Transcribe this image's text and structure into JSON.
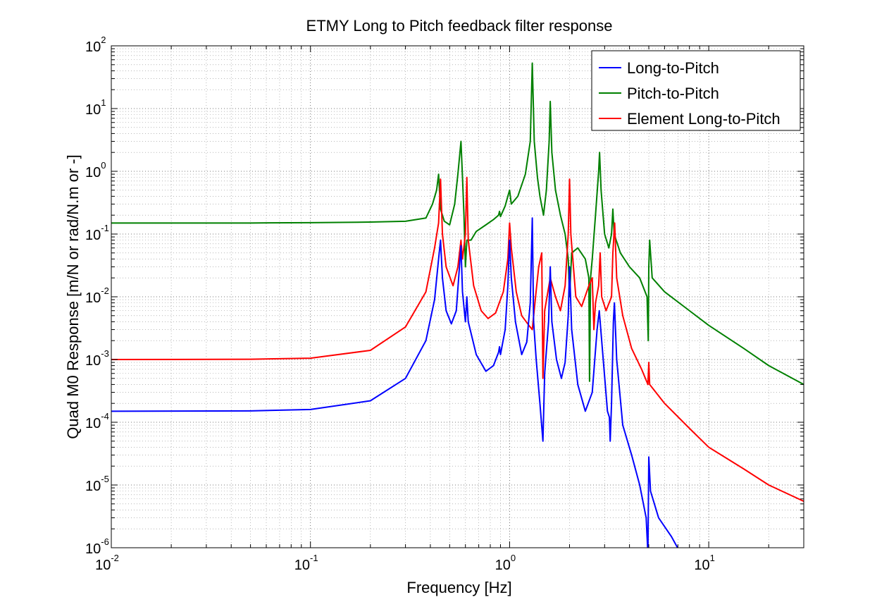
{
  "chart_data": {
    "type": "line",
    "title": "ETMY Long to Pitch feedback filter response",
    "xlabel": "Frequency [Hz]",
    "ylabel": "Quad M0 Response [m/N or rad/N.m or -]",
    "xscale": "log",
    "yscale": "log",
    "xlim": [
      0.01,
      30
    ],
    "ylim": [
      1e-06,
      100
    ],
    "grid": "major-and-minor dotted",
    "legend_position": "top-right",
    "x_ticks": [
      {
        "value": 0.01,
        "base": "10",
        "exp": "-2"
      },
      {
        "value": 0.1,
        "base": "10",
        "exp": "-1"
      },
      {
        "value": 1,
        "base": "10",
        "exp": "0"
      },
      {
        "value": 10,
        "base": "10",
        "exp": "1"
      }
    ],
    "y_ticks": [
      {
        "value": 1e-06,
        "base": "10",
        "exp": "-6"
      },
      {
        "value": 1e-05,
        "base": "10",
        "exp": "-5"
      },
      {
        "value": 0.0001,
        "base": "10",
        "exp": "-4"
      },
      {
        "value": 0.001,
        "base": "10",
        "exp": "-3"
      },
      {
        "value": 0.01,
        "base": "10",
        "exp": "-2"
      },
      {
        "value": 0.1,
        "base": "10",
        "exp": "-1"
      },
      {
        "value": 1,
        "base": "10",
        "exp": "0"
      },
      {
        "value": 10,
        "base": "10",
        "exp": "1"
      },
      {
        "value": 100,
        "base": "10",
        "exp": "2"
      }
    ],
    "series": [
      {
        "name": "Long-to-Pitch",
        "color": "#0000ff",
        "points": [
          [
            0.01,
            0.00015
          ],
          [
            0.05,
            0.000152
          ],
          [
            0.1,
            0.00016
          ],
          [
            0.2,
            0.00022
          ],
          [
            0.3,
            0.0005
          ],
          [
            0.38,
            0.002
          ],
          [
            0.42,
            0.009
          ],
          [
            0.44,
            0.04
          ],
          [
            0.45,
            0.08
          ],
          [
            0.46,
            0.02
          ],
          [
            0.48,
            0.006
          ],
          [
            0.51,
            0.0037
          ],
          [
            0.54,
            0.006
          ],
          [
            0.56,
            0.03
          ],
          [
            0.57,
            0.065
          ],
          [
            0.58,
            0.012
          ],
          [
            0.6,
            0.004
          ],
          [
            0.61,
            0.01
          ],
          [
            0.62,
            0.004
          ],
          [
            0.68,
            0.0012
          ],
          [
            0.76,
            0.00065
          ],
          [
            0.83,
            0.0008
          ],
          [
            0.88,
            0.0013
          ],
          [
            0.89,
            0.0016
          ],
          [
            0.9,
            0.0012
          ],
          [
            0.95,
            0.003
          ],
          [
            0.98,
            0.015
          ],
          [
            1.0,
            0.08
          ],
          [
            1.02,
            0.02
          ],
          [
            1.07,
            0.004
          ],
          [
            1.15,
            0.0012
          ],
          [
            1.22,
            0.0019
          ],
          [
            1.27,
            0.008
          ],
          [
            1.3,
            0.18
          ],
          [
            1.32,
            0.004
          ],
          [
            1.36,
            0.001
          ],
          [
            1.42,
            0.0002
          ],
          [
            1.47,
            5e-05
          ],
          [
            1.5,
            0.0006
          ],
          [
            1.57,
            0.004
          ],
          [
            1.6,
            0.03
          ],
          [
            1.63,
            0.004
          ],
          [
            1.72,
            0.001
          ],
          [
            1.82,
            0.0005
          ],
          [
            1.9,
            0.0009
          ],
          [
            1.97,
            0.005
          ],
          [
            2.0,
            0.03
          ],
          [
            2.05,
            0.003
          ],
          [
            2.2,
            0.0004
          ],
          [
            2.4,
            0.00015
          ],
          [
            2.6,
            0.0003
          ],
          [
            2.75,
            0.003
          ],
          [
            2.82,
            0.006
          ],
          [
            2.9,
            0.002
          ],
          [
            3.1,
            0.00015
          ],
          [
            3.17,
            0.00012
          ],
          [
            3.2,
            5e-05
          ],
          [
            3.25,
            0.0002
          ],
          [
            3.32,
            0.004
          ],
          [
            3.36,
            0.008
          ],
          [
            3.45,
            0.001
          ],
          [
            3.7,
            9e-05
          ],
          [
            4.1,
            3e-05
          ],
          [
            4.5,
            1e-05
          ],
          [
            4.85,
            3e-06
          ],
          [
            4.95,
            8e-07
          ],
          [
            5.0,
            2.8e-05
          ],
          [
            5.1,
            8e-06
          ],
          [
            5.6,
            3e-06
          ],
          [
            6.5,
            1.5e-06
          ],
          [
            7.1,
            9e-07
          ],
          [
            8.0,
            8e-07
          ]
        ]
      },
      {
        "name": "Pitch-to-Pitch",
        "color": "#008000",
        "points": [
          [
            0.01,
            0.15
          ],
          [
            0.05,
            0.15
          ],
          [
            0.1,
            0.152
          ],
          [
            0.2,
            0.155
          ],
          [
            0.3,
            0.16
          ],
          [
            0.38,
            0.18
          ],
          [
            0.41,
            0.3
          ],
          [
            0.43,
            0.5
          ],
          [
            0.44,
            0.9
          ],
          [
            0.45,
            0.25
          ],
          [
            0.47,
            0.16
          ],
          [
            0.5,
            0.14
          ],
          [
            0.53,
            0.3
          ],
          [
            0.55,
            0.9
          ],
          [
            0.57,
            3.0
          ],
          [
            0.58,
            0.8
          ],
          [
            0.59,
            0.2
          ],
          [
            0.6,
            0.03
          ],
          [
            0.61,
            0.08
          ],
          [
            0.64,
            0.08
          ],
          [
            0.68,
            0.11
          ],
          [
            0.76,
            0.14
          ],
          [
            0.83,
            0.17
          ],
          [
            0.88,
            0.2
          ],
          [
            0.89,
            0.23
          ],
          [
            0.9,
            0.19
          ],
          [
            0.95,
            0.28
          ],
          [
            0.98,
            0.4
          ],
          [
            1.0,
            0.5
          ],
          [
            1.02,
            0.3
          ],
          [
            1.1,
            0.4
          ],
          [
            1.2,
            0.9
          ],
          [
            1.27,
            3.0
          ],
          [
            1.3,
            53
          ],
          [
            1.33,
            3.0
          ],
          [
            1.38,
            0.8
          ],
          [
            1.42,
            0.4
          ],
          [
            1.48,
            0.2
          ],
          [
            1.53,
            0.5
          ],
          [
            1.58,
            3.0
          ],
          [
            1.6,
            13
          ],
          [
            1.63,
            2.0
          ],
          [
            1.7,
            0.5
          ],
          [
            1.8,
            0.2
          ],
          [
            1.9,
            0.1
          ],
          [
            1.97,
            0.04
          ],
          [
            2.0,
            0.01
          ],
          [
            2.05,
            0.05
          ],
          [
            2.2,
            0.06
          ],
          [
            2.4,
            0.04
          ],
          [
            2.5,
            0.02
          ],
          [
            2.52,
            0.00045
          ],
          [
            2.55,
            0.02
          ],
          [
            2.6,
            0.04
          ],
          [
            2.7,
            0.2
          ],
          [
            2.8,
            1.0
          ],
          [
            2.83,
            2.0
          ],
          [
            2.88,
            0.5
          ],
          [
            3.0,
            0.1
          ],
          [
            3.15,
            0.06
          ],
          [
            3.25,
            0.1
          ],
          [
            3.3,
            0.25
          ],
          [
            3.35,
            0.1
          ],
          [
            3.6,
            0.05
          ],
          [
            4.0,
            0.03
          ],
          [
            4.5,
            0.02
          ],
          [
            4.9,
            0.01
          ],
          [
            4.97,
            0.002
          ],
          [
            5.0,
            0.03
          ],
          [
            5.05,
            0.08
          ],
          [
            5.2,
            0.02
          ],
          [
            6.0,
            0.012
          ],
          [
            8.0,
            0.006
          ],
          [
            10.0,
            0.0035
          ],
          [
            15.0,
            0.0015
          ],
          [
            20.0,
            0.0008
          ],
          [
            30.0,
            0.0004
          ]
        ]
      },
      {
        "name": "Element Long-to-Pitch",
        "color": "#ff0000",
        "points": [
          [
            0.01,
            0.001
          ],
          [
            0.05,
            0.00101
          ],
          [
            0.1,
            0.00105
          ],
          [
            0.2,
            0.0014
          ],
          [
            0.3,
            0.0033
          ],
          [
            0.38,
            0.012
          ],
          [
            0.42,
            0.06
          ],
          [
            0.44,
            0.15
          ],
          [
            0.45,
            0.75
          ],
          [
            0.46,
            0.1
          ],
          [
            0.48,
            0.03
          ],
          [
            0.52,
            0.015
          ],
          [
            0.55,
            0.03
          ],
          [
            0.57,
            0.08
          ],
          [
            0.58,
            0.04
          ],
          [
            0.6,
            0.1
          ],
          [
            0.61,
            0.8
          ],
          [
            0.62,
            0.08
          ],
          [
            0.66,
            0.015
          ],
          [
            0.72,
            0.006
          ],
          [
            0.78,
            0.0045
          ],
          [
            0.85,
            0.0055
          ],
          [
            0.93,
            0.012
          ],
          [
            0.98,
            0.04
          ],
          [
            1.0,
            0.15
          ],
          [
            1.02,
            0.06
          ],
          [
            1.08,
            0.012
          ],
          [
            1.15,
            0.005
          ],
          [
            1.25,
            0.0035
          ],
          [
            1.3,
            0.003
          ],
          [
            1.35,
            0.01
          ],
          [
            1.4,
            0.03
          ],
          [
            1.45,
            0.05
          ],
          [
            1.47,
            0.0005
          ],
          [
            1.5,
            0.006
          ],
          [
            1.6,
            0.02
          ],
          [
            1.7,
            0.01
          ],
          [
            1.8,
            0.006
          ],
          [
            1.9,
            0.015
          ],
          [
            1.97,
            0.1
          ],
          [
            2.0,
            0.75
          ],
          [
            2.03,
            0.1
          ],
          [
            2.15,
            0.01
          ],
          [
            2.3,
            0.007
          ],
          [
            2.5,
            0.015
          ],
          [
            2.6,
            0.02
          ],
          [
            2.65,
            0.003
          ],
          [
            2.7,
            0.008
          ],
          [
            2.8,
            0.015
          ],
          [
            2.85,
            0.05
          ],
          [
            2.9,
            0.01
          ],
          [
            3.05,
            0.006
          ],
          [
            3.25,
            0.01
          ],
          [
            3.3,
            0.05
          ],
          [
            3.37,
            0.15
          ],
          [
            3.45,
            0.02
          ],
          [
            3.7,
            0.005
          ],
          [
            4.1,
            0.0015
          ],
          [
            4.6,
            0.0007
          ],
          [
            4.95,
            0.0004
          ],
          [
            5.0,
            0.0009
          ],
          [
            5.05,
            0.0004
          ],
          [
            6.0,
            0.0002
          ],
          [
            8.0,
            8e-05
          ],
          [
            10.0,
            4e-05
          ],
          [
            15.0,
            1.8e-05
          ],
          [
            20.0,
            1e-05
          ],
          [
            30.0,
            5.5e-06
          ]
        ]
      }
    ]
  }
}
